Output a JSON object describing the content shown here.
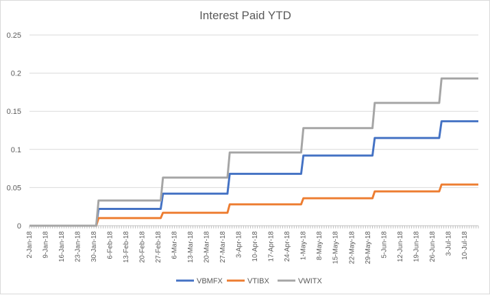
{
  "chart_data": {
    "type": "line",
    "title": "Interest Paid YTD",
    "xlabel": "",
    "ylabel": "",
    "ylim": [
      0,
      0.25
    ],
    "yticks": [
      "0",
      "0.05",
      "0.1",
      "0.15",
      "0.2",
      "0.25"
    ],
    "grid": true,
    "legend_position": "bottom",
    "x": [
      "2-Jan-18",
      "9-Jan-18",
      "16-Jan-18",
      "23-Jan-18",
      "30-Jan-18",
      "6-Feb-18",
      "13-Feb-18",
      "20-Feb-18",
      "27-Feb-18",
      "6-Mar-18",
      "13-Mar-18",
      "20-Mar-18",
      "27-Mar-18",
      "3-Apr-18",
      "10-Apr-18",
      "17-Apr-18",
      "24-Apr-18",
      "1-May-18",
      "8-May-18",
      "15-May-18",
      "22-May-18",
      "29-May-18",
      "5-Jun-18",
      "12-Jun-18",
      "19-Jun-18",
      "26-Jun-18",
      "3-Jul-18",
      "10-Jul-18"
    ],
    "x_range": [
      "2-Jan-18",
      "16-Jul-18"
    ],
    "series": [
      {
        "name": "VBMFX",
        "color": "#4472c4",
        "points": [
          [
            "2-Jan-18",
            0
          ],
          [
            "31-Jan-18",
            0
          ],
          [
            "1-Feb-18",
            0.022
          ],
          [
            "28-Feb-18",
            0.022
          ],
          [
            "1-Mar-18",
            0.042
          ],
          [
            "29-Mar-18",
            0.042
          ],
          [
            "30-Mar-18",
            0.068
          ],
          [
            "30-Apr-18",
            0.068
          ],
          [
            "1-May-18",
            0.092
          ],
          [
            "31-May-18",
            0.092
          ],
          [
            "1-Jun-18",
            0.115
          ],
          [
            "29-Jun-18",
            0.115
          ],
          [
            "30-Jun-18",
            0.137
          ],
          [
            "16-Jul-18",
            0.137
          ]
        ]
      },
      {
        "name": "VTIBX",
        "color": "#ed7d31",
        "points": [
          [
            "2-Jan-18",
            0
          ],
          [
            "31-Jan-18",
            0
          ],
          [
            "1-Feb-18",
            0.01
          ],
          [
            "28-Feb-18",
            0.01
          ],
          [
            "1-Mar-18",
            0.017
          ],
          [
            "29-Mar-18",
            0.017
          ],
          [
            "30-Mar-18",
            0.028
          ],
          [
            "30-Apr-18",
            0.028
          ],
          [
            "1-May-18",
            0.036
          ],
          [
            "31-May-18",
            0.036
          ],
          [
            "1-Jun-18",
            0.045
          ],
          [
            "29-Jun-18",
            0.045
          ],
          [
            "30-Jun-18",
            0.054
          ],
          [
            "16-Jul-18",
            0.054
          ]
        ]
      },
      {
        "name": "VWITX",
        "color": "#a5a5a5",
        "points": [
          [
            "2-Jan-18",
            0
          ],
          [
            "31-Jan-18",
            0
          ],
          [
            "1-Feb-18",
            0.033
          ],
          [
            "28-Feb-18",
            0.033
          ],
          [
            "1-Mar-18",
            0.063
          ],
          [
            "29-Mar-18",
            0.063
          ],
          [
            "30-Mar-18",
            0.096
          ],
          [
            "30-Apr-18",
            0.096
          ],
          [
            "1-May-18",
            0.128
          ],
          [
            "31-May-18",
            0.128
          ],
          [
            "1-Jun-18",
            0.161
          ],
          [
            "29-Jun-18",
            0.161
          ],
          [
            "30-Jun-18",
            0.193
          ],
          [
            "16-Jul-18",
            0.193
          ]
        ]
      }
    ]
  }
}
